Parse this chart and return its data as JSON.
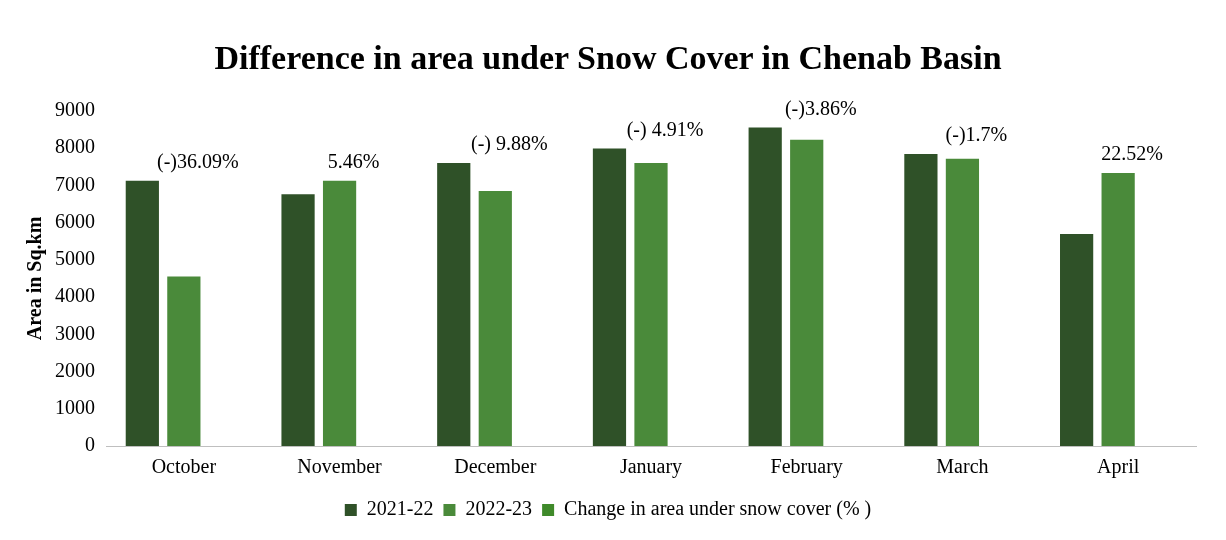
{
  "chart_data": {
    "type": "bar",
    "title": "Difference in area under Snow Cover in Chenab Basin",
    "ylabel": "Area in Sq.km",
    "categories": [
      "October",
      "November",
      "December",
      "January",
      "February",
      "March",
      "April"
    ],
    "series": [
      {
        "name": "2021-22",
        "color": "#2f5128",
        "values": [
          7120,
          6760,
          7600,
          7990,
          8550,
          7840,
          5690
        ]
      },
      {
        "name": "2022-23",
        "color": "#4a8a3a",
        "values": [
          4550,
          7120,
          6850,
          7600,
          8220,
          7710,
          7330
        ]
      },
      {
        "name": "Change in area under snow cover (% )",
        "color": "#3f8a2a",
        "values": [
          null,
          null,
          null,
          null,
          null,
          null,
          null
        ]
      }
    ],
    "annotations": [
      "(-)36.09%",
      "5.46%",
      "(-) 9.88%",
      "(-) 4.91%",
      "(-)3.86%",
      "(-)1.7%",
      "22.52%"
    ],
    "ylim": [
      0,
      9000
    ],
    "yticks": [
      0,
      1000,
      2000,
      3000,
      4000,
      5000,
      6000,
      7000,
      8000,
      9000
    ],
    "grid": false,
    "legend": "bottom"
  }
}
